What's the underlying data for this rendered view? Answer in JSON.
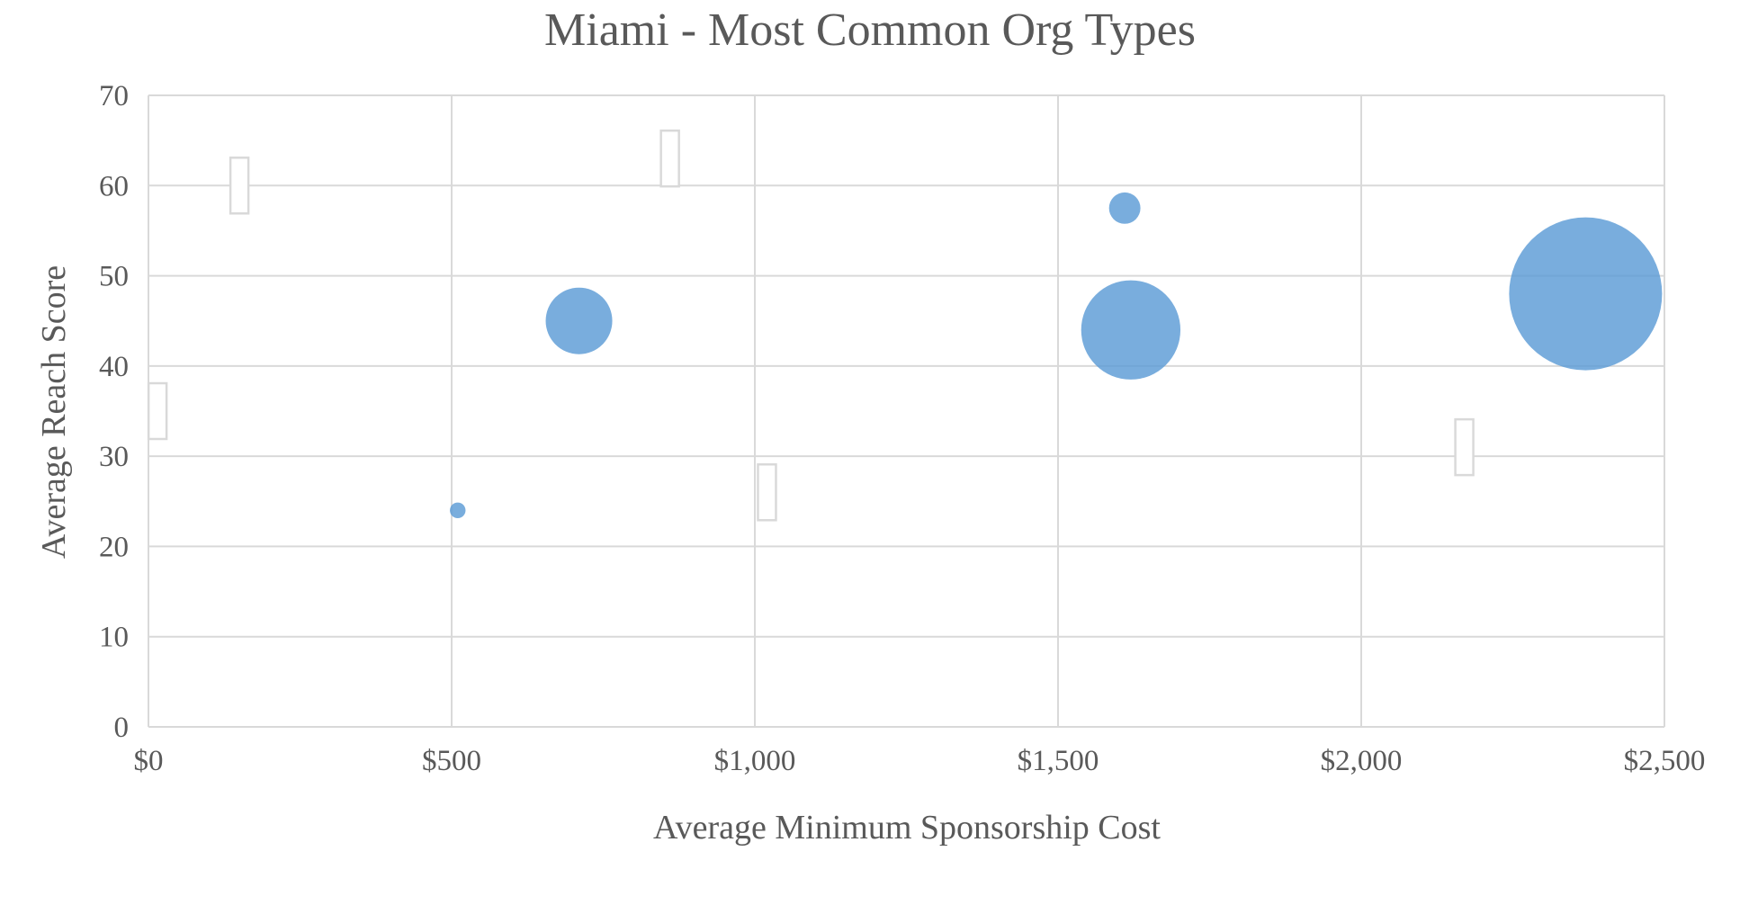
{
  "chart_data": {
    "type": "scatter",
    "subtype": "bubble",
    "title": "Miami - Most Common Org Types",
    "xlabel": "Average Minimum Sponsorship Cost",
    "ylabel": "Average Reach Score",
    "xlim": [
      0,
      2500
    ],
    "ylim": [
      0,
      70
    ],
    "x_ticks": [
      0,
      500,
      1000,
      1500,
      2000,
      2500
    ],
    "x_tick_labels": [
      "$0",
      "$500",
      "$1,000",
      "$1,500",
      "$2,000",
      "$2,500"
    ],
    "y_ticks": [
      0,
      10,
      20,
      30,
      40,
      50,
      60,
      70
    ],
    "y_tick_labels": [
      "0",
      "10",
      "20",
      "30",
      "40",
      "50",
      "60",
      "70"
    ],
    "grid": true,
    "legend": "none",
    "bubble_color": "#5b9bd5",
    "points": [
      {
        "x": 510,
        "y": 24,
        "size": 1
      },
      {
        "x": 710,
        "y": 45,
        "size": 18
      },
      {
        "x": 1610,
        "y": 57.5,
        "size": 4
      },
      {
        "x": 1620,
        "y": 44,
        "size": 40
      },
      {
        "x": 2370,
        "y": 48,
        "size": 95
      }
    ],
    "empty_labels": [
      {
        "x": 15,
        "y": 35
      },
      {
        "x": 150,
        "y": 60
      },
      {
        "x": 860,
        "y": 63
      },
      {
        "x": 1020,
        "y": 26
      },
      {
        "x": 2170,
        "y": 31
      }
    ]
  }
}
